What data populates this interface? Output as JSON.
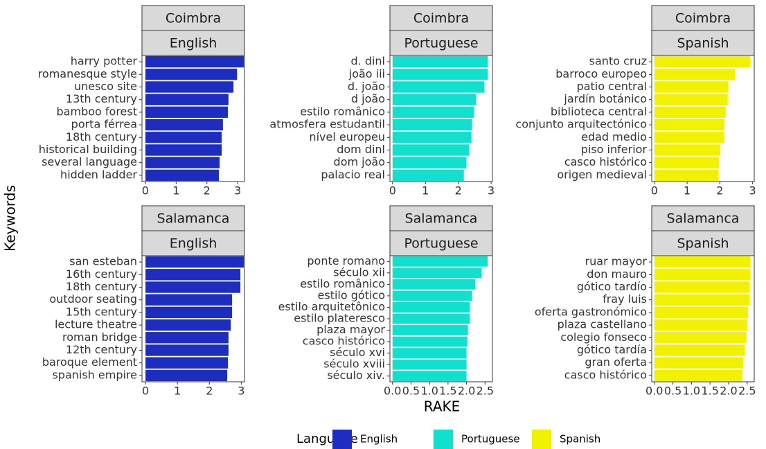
{
  "chart_data": [
    {
      "type": "bar",
      "orientation": "horizontal",
      "facet": [
        "Coimbra",
        "English"
      ],
      "categories": [
        "harry potter",
        "romanesque style",
        "unesco site",
        "13th century",
        "bamboo forest",
        "porta férrea",
        "18th century",
        "historical building",
        "several language",
        "hidden ladder"
      ],
      "series": [
        {
          "name": "English",
          "color": "#1c2dc0",
          "values": [
            3.2,
            2.98,
            2.86,
            2.7,
            2.68,
            2.52,
            2.48,
            2.48,
            2.41,
            2.39
          ]
        }
      ],
      "xlim": [
        -0.11,
        3.22
      ],
      "xticks": [
        0,
        1,
        2,
        3
      ]
    },
    {
      "type": "bar",
      "orientation": "horizontal",
      "facet": [
        "Coimbra",
        "Portuguese"
      ],
      "categories": [
        "d. dinl",
        "joão iii",
        "d. joão",
        "d joão",
        "estilo românico",
        "atmosfera estudantil",
        "nível europeu",
        "dom dinl",
        "dom joão",
        "palacio real"
      ],
      "series": [
        {
          "name": "Portuguese",
          "color": "#12e0cf",
          "values": [
            2.9,
            2.9,
            2.79,
            2.54,
            2.48,
            2.42,
            2.4,
            2.33,
            2.25,
            2.17
          ]
        }
      ],
      "xlim": [
        -0.08,
        3.04
      ],
      "xticks": [
        0,
        1,
        2,
        3
      ]
    },
    {
      "type": "bar",
      "orientation": "horizontal",
      "facet": [
        "Coimbra",
        "Spanish"
      ],
      "categories": [
        "santo cruz",
        "barroco europeo",
        "patio central",
        "jardín botánico",
        "biblioteca central",
        "conjunto arquitectónico",
        "edad medio",
        "piso inferior",
        "casco histórico",
        "origen medieval"
      ],
      "series": [
        {
          "name": "Spanish",
          "color": "#f2f200",
          "values": [
            2.93,
            2.47,
            2.26,
            2.24,
            2.18,
            2.14,
            2.12,
            2.01,
            1.97,
            1.95
          ]
        }
      ],
      "xlim": [
        -0.08,
        3.05
      ],
      "xticks": [
        0,
        1,
        2,
        3
      ]
    },
    {
      "type": "bar",
      "orientation": "horizontal",
      "facet": [
        "Salamanca",
        "English"
      ],
      "categories": [
        "san esteban",
        "16th century",
        "18th century",
        "outdoor seating",
        "15th century",
        "lecture theatre",
        "roman bridge",
        "12th century",
        "baroque element",
        "spanish empire"
      ],
      "series": [
        {
          "name": "English",
          "color": "#1c2dc0",
          "values": [
            3.08,
            2.97,
            2.97,
            2.71,
            2.71,
            2.67,
            2.6,
            2.6,
            2.58,
            2.56
          ]
        }
      ],
      "xlim": [
        -0.11,
        3.1
      ],
      "xticks": [
        0,
        1,
        2,
        3
      ]
    },
    {
      "type": "bar",
      "orientation": "horizontal",
      "facet": [
        "Salamanca",
        "Portuguese"
      ],
      "categories": [
        "ponte romano",
        "século xii",
        "estilo românico",
        "estilo gótico",
        "estilo arquitetônico",
        "estilo plateresco",
        "plaza mayor",
        "casco histórico",
        "século xvi",
        "século xviii",
        "século xiv."
      ],
      "series": [
        {
          "name": "Portuguese",
          "color": "#12e0cf",
          "values": [
            2.57,
            2.41,
            2.24,
            2.15,
            2.09,
            2.09,
            2.04,
            2.02,
            2.0,
            2.0,
            2.0
          ]
        }
      ],
      "xlim": [
        -0.07,
        2.7
      ],
      "xticks": [
        {
          "value": 0,
          "label": "0.0"
        },
        0.5,
        {
          "value": 1,
          "label": "1.0"
        },
        1.5,
        {
          "value": 2,
          "label": "2.0"
        },
        2.5
      ]
    },
    {
      "type": "bar",
      "orientation": "horizontal",
      "facet": [
        "Salamanca",
        "Spanish"
      ],
      "categories": [
        "ruar mayor",
        "don mauro",
        "gótico tardío",
        "fray luis",
        "oferta gastronómico",
        "plaza castellano",
        "colegio fonseco",
        "gótico tardía",
        "gran oferta",
        "casco histórico"
      ],
      "series": [
        {
          "name": "Spanish",
          "color": "#f2f200",
          "values": [
            2.59,
            2.59,
            2.57,
            2.57,
            2.52,
            2.5,
            2.48,
            2.43,
            2.39,
            2.37
          ]
        }
      ],
      "xlim": [
        -0.07,
        2.69
      ],
      "xticks": [
        {
          "value": 0,
          "label": "0.0"
        },
        0.5,
        {
          "value": 1,
          "label": "1.0"
        },
        1.5,
        {
          "value": 2,
          "label": "2.0"
        },
        2.5
      ]
    }
  ],
  "x_label": "RAKE",
  "y_label": "Keywords",
  "legend_title": "Language"
}
